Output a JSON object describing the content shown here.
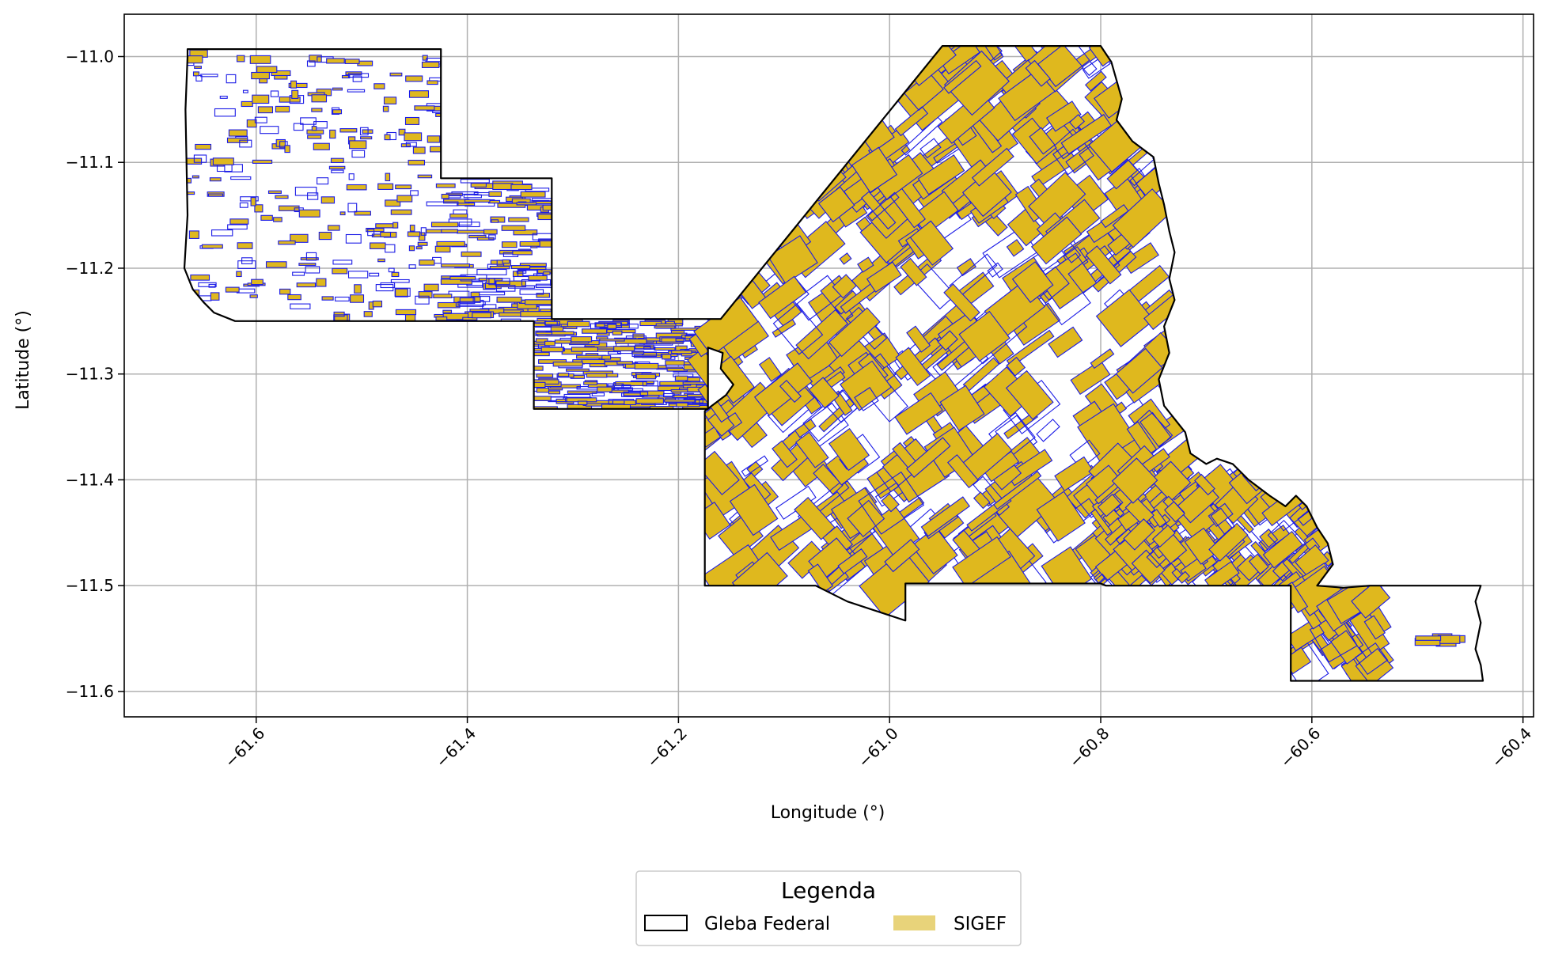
{
  "chart_data": {
    "type": "map",
    "xlabel": "Longitude (°)",
    "ylabel": "Latitude (°)",
    "xlim": [
      -61.725,
      -60.39
    ],
    "ylim": [
      -11.624,
      -10.96
    ],
    "x_ticks": [
      -61.6,
      -61.4,
      -61.2,
      -61.0,
      -60.8,
      -60.6,
      -60.4
    ],
    "x_tick_labels": [
      "−61.6",
      "−61.4",
      "−61.2",
      "−61.0",
      "−60.8",
      "−60.6",
      "−60.4"
    ],
    "y_ticks": [
      -11.0,
      -11.1,
      -11.2,
      -11.3,
      -11.4,
      -11.5,
      -11.6
    ],
    "y_tick_labels": [
      "−11.0",
      "−11.1",
      "−11.2",
      "−11.3",
      "−11.4",
      "−11.5",
      "−11.6"
    ],
    "grid": true,
    "legend": {
      "title": "Legenda",
      "placement": "bottom-center",
      "entries": [
        {
          "label": "Gleba Federal",
          "style": "outline"
        },
        {
          "label": "SIGEF",
          "style": "fill"
        }
      ]
    },
    "colors": {
      "gleba_outline": "#000000",
      "sigef_fill": "#DFB81E",
      "sigef_edge": "#1A1AE6",
      "legend_sigef_swatch": "#E8D37A",
      "grid": "#B0B0B0"
    },
    "gleba_boundary": [
      [
        -61.665,
        -10.993
      ],
      [
        -61.425,
        -10.993
      ],
      [
        -61.425,
        -11.115
      ],
      [
        -61.32,
        -11.115
      ],
      [
        -61.32,
        -11.248
      ],
      [
        -61.16,
        -11.248
      ],
      [
        -60.95,
        -10.99
      ],
      [
        -60.8,
        -10.99
      ],
      [
        -60.79,
        -11.005
      ],
      [
        -60.78,
        -11.04
      ],
      [
        -60.785,
        -11.06
      ],
      [
        -60.77,
        -11.08
      ],
      [
        -60.75,
        -11.095
      ],
      [
        -60.745,
        -11.12
      ],
      [
        -60.74,
        -11.14
      ],
      [
        -60.735,
        -11.165
      ],
      [
        -60.73,
        -11.185
      ],
      [
        -60.735,
        -11.21
      ],
      [
        -60.73,
        -11.23
      ],
      [
        -60.74,
        -11.255
      ],
      [
        -60.735,
        -11.28
      ],
      [
        -60.745,
        -11.305
      ],
      [
        -60.74,
        -11.33
      ],
      [
        -60.72,
        -11.355
      ],
      [
        -60.715,
        -11.375
      ],
      [
        -60.7,
        -11.385
      ],
      [
        -60.69,
        -11.38
      ],
      [
        -60.675,
        -11.385
      ],
      [
        -60.66,
        -11.4
      ],
      [
        -60.64,
        -11.415
      ],
      [
        -60.625,
        -11.425
      ],
      [
        -60.615,
        -11.415
      ],
      [
        -60.605,
        -11.425
      ],
      [
        -60.595,
        -11.445
      ],
      [
        -60.585,
        -11.46
      ],
      [
        -60.58,
        -11.48
      ],
      [
        -60.595,
        -11.5
      ],
      [
        -60.57,
        -11.502
      ],
      [
        -60.545,
        -11.5
      ],
      [
        -60.505,
        -11.5
      ],
      [
        -60.46,
        -11.5
      ],
      [
        -60.44,
        -11.5
      ],
      [
        -60.445,
        -11.515
      ],
      [
        -60.44,
        -11.535
      ],
      [
        -60.445,
        -11.56
      ],
      [
        -60.44,
        -11.575
      ],
      [
        -60.438,
        -11.59
      ],
      [
        -60.62,
        -11.59
      ],
      [
        -60.62,
        -11.5
      ],
      [
        -60.795,
        -11.5
      ],
      [
        -60.8,
        -11.498
      ],
      [
        -60.985,
        -11.498
      ],
      [
        -60.985,
        -11.533
      ],
      [
        -61.04,
        -11.515
      ],
      [
        -61.07,
        -11.5
      ],
      [
        -61.175,
        -11.5
      ],
      [
        -61.175,
        -11.335
      ],
      [
        -61.155,
        -11.32
      ],
      [
        -61.148,
        -11.31
      ],
      [
        -61.16,
        -11.295
      ],
      [
        -61.158,
        -11.28
      ],
      [
        -61.172,
        -11.275
      ],
      [
        -61.172,
        -11.333
      ],
      [
        -61.337,
        -11.333
      ],
      [
        -61.337,
        -11.25
      ],
      [
        -61.62,
        -11.25
      ],
      [
        -61.64,
        -11.242
      ],
      [
        -61.65,
        -11.232
      ],
      [
        -61.66,
        -11.22
      ],
      [
        -61.668,
        -11.2
      ],
      [
        -61.665,
        -11.15
      ],
      [
        -61.667,
        -11.05
      ],
      [
        -61.665,
        -11.0
      ]
    ]
  }
}
